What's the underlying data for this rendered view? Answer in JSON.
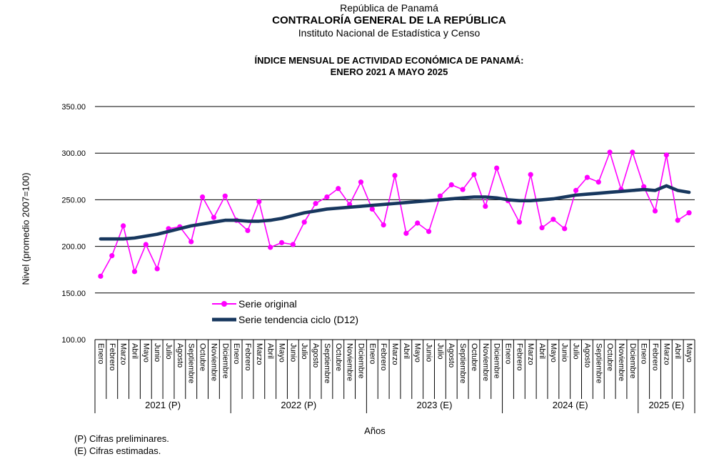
{
  "header": {
    "country": "República de Panamá",
    "institution": "CONTRALORÍA GENERAL DE LA REPÚBLICA",
    "department": "Instituto Nacional de Estadística y Censo",
    "title_line1": "ÍNDICE MENSUAL DE ACTIVIDAD ECONÓMICA DE PANAMÁ:",
    "title_line2": "ENERO 2021 A MAYO 2025"
  },
  "footnotes": {
    "preliminary": "(P) Cifras preliminares.",
    "estimated": "(E) Cifras estimadas."
  },
  "chart_data": {
    "type": "line",
    "title": "ÍNDICE MENSUAL DE ACTIVIDAD ECONÓMICA DE PANAMÁ: ENERO 2021 A MAYO 2025",
    "xlabel": "Años",
    "ylabel": "Nivel (promedio 2007=100)",
    "ylim": [
      100,
      350
    ],
    "yticks": [
      350,
      300,
      250,
      200,
      150,
      100
    ],
    "ytick_decimals": 2,
    "grid": true,
    "legend_position": "inside-bottom-left",
    "month_names": [
      "Enero",
      "Febrero",
      "Marzo",
      "Abril",
      "Mayo",
      "Junio",
      "Julio",
      "Agosto",
      "Septiembre",
      "Octubre",
      "Noviembre",
      "Diciembre"
    ],
    "year_groups": [
      {
        "label": "2021 (P)",
        "months": 12
      },
      {
        "label": "2022 (P)",
        "months": 12
      },
      {
        "label": "2023 (E)",
        "months": 12
      },
      {
        "label": "2024 (E)",
        "months": 12
      },
      {
        "label": "2025 (E)",
        "months": 5
      }
    ],
    "series": [
      {
        "name": "Serie original",
        "color": "#FF00FF",
        "style": "line+markers",
        "values": [
          168,
          190,
          222,
          173,
          202,
          176,
          219,
          221,
          205,
          253,
          231,
          254,
          228,
          217,
          248,
          199,
          204,
          202,
          226,
          246,
          253,
          262,
          245,
          269,
          240,
          223,
          276,
          214,
          225,
          216,
          254,
          266,
          261,
          277,
          243,
          284,
          249,
          226,
          277,
          220,
          229,
          219,
          260,
          274,
          269,
          301,
          261,
          301,
          264,
          238,
          298,
          228,
          236
        ]
      },
      {
        "name": "Serie tendencia ciclo (D12)",
        "color": "#17375E",
        "style": "thick-line",
        "values": [
          208,
          208,
          208,
          209,
          211,
          213,
          216,
          219,
          222,
          224,
          226,
          228,
          228,
          227,
          227,
          228,
          230,
          233,
          236,
          238,
          240,
          241,
          242,
          243,
          244,
          245,
          246,
          247,
          248,
          249,
          250,
          251,
          252,
          253,
          253,
          252,
          250,
          249,
          249,
          250,
          251,
          253,
          255,
          256,
          257,
          258,
          259,
          260,
          261,
          260,
          265,
          260,
          258
        ]
      }
    ]
  }
}
